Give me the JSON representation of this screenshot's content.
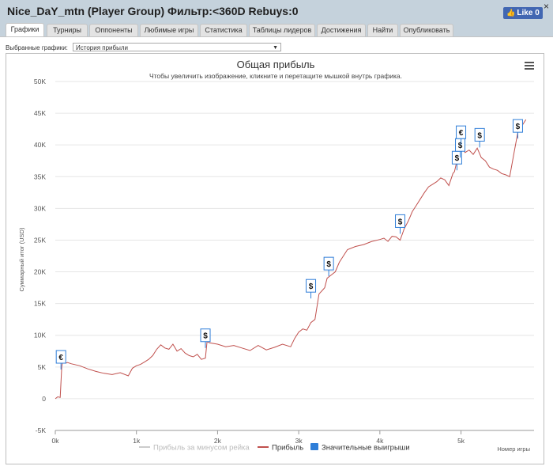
{
  "window": {
    "title": "Nice_DaY_mtn (Player Group) Фильтр:<360D Rebuys:0",
    "close_icon": "×",
    "like_label": "Like 0"
  },
  "tabs": [
    {
      "label": "Графики",
      "active": true
    },
    {
      "label": "Турниры",
      "active": false
    },
    {
      "label": "Оппоненты",
      "active": false
    },
    {
      "label": "Любимые игры",
      "active": false
    },
    {
      "label": "Статистика",
      "active": false
    },
    {
      "label": "Таблицы лидеров",
      "active": false
    },
    {
      "label": "Достижения",
      "active": false
    },
    {
      "label": "Найти",
      "active": false
    },
    {
      "label": "Опубликовать",
      "active": false
    }
  ],
  "graph_select": {
    "label": "Выбранные графики:",
    "value": "История прибыли"
  },
  "chart_data": {
    "type": "line",
    "title": "Общая прибыль",
    "subtitle": "Чтобы увеличить изображение, кликните и перетащите мышкой внутрь графика.",
    "xlabel": "Номер игры",
    "ylabel": "Суммарный итог (USD)",
    "x_ticks": [
      "0k",
      "1k",
      "2k",
      "3k",
      "4k",
      "5k"
    ],
    "y_ticks": [
      "50K",
      "45K",
      "40K",
      "35K",
      "30K",
      "25K",
      "20K",
      "15K",
      "10K",
      "5K",
      "0",
      "-5K"
    ],
    "xlim": [
      0,
      5900
    ],
    "ylim": [
      -5000,
      50000
    ],
    "grid": true,
    "legend": [
      {
        "label": "Прибыль за минусом рейка",
        "color": "#cccccc"
      },
      {
        "label": "Прибыль",
        "color": "#c0504d"
      },
      {
        "label": "Значительные выигрыши",
        "color": "#2f7ed8"
      }
    ],
    "series": [
      {
        "name": "Прибыль",
        "color": "#c0504d",
        "x": [
          0,
          30,
          60,
          80,
          90,
          130,
          150,
          200,
          300,
          400,
          500,
          600,
          700,
          800,
          900,
          950,
          1000,
          1050,
          1100,
          1150,
          1200,
          1250,
          1300,
          1350,
          1400,
          1450,
          1500,
          1550,
          1600,
          1650,
          1700,
          1750,
          1800,
          1850,
          1870,
          1900,
          2000,
          2100,
          2200,
          2300,
          2400,
          2500,
          2600,
          2700,
          2800,
          2900,
          2950,
          3000,
          3050,
          3100,
          3150,
          3200,
          3250,
          3300,
          3320,
          3350,
          3400,
          3450,
          3500,
          3600,
          3700,
          3800,
          3900,
          4000,
          4050,
          4100,
          4150,
          4200,
          4250,
          4300,
          4350,
          4400,
          4450,
          4500,
          4550,
          4600,
          4650,
          4700,
          4750,
          4800,
          4850,
          4900,
          4920,
          4950,
          4970,
          4980,
          5000,
          5050,
          5100,
          5150,
          5200,
          5250,
          5300,
          5350,
          5400,
          5450,
          5500,
          5550,
          5600,
          5650,
          5700,
          5750,
          5800
        ],
        "y": [
          0,
          300,
          200,
          5100,
          5800,
          5600,
          5700,
          5500,
          5200,
          4700,
          4300,
          4000,
          3800,
          4100,
          3600,
          4800,
          5200,
          5400,
          5800,
          6200,
          6800,
          7800,
          8500,
          8000,
          7800,
          8600,
          7500,
          7900,
          7200,
          6800,
          6600,
          7000,
          6200,
          6400,
          9000,
          8800,
          8600,
          8200,
          8400,
          8000,
          7600,
          8400,
          7700,
          8100,
          8600,
          8200,
          9500,
          10500,
          11000,
          10800,
          12000,
          12500,
          16500,
          17200,
          17500,
          19000,
          19500,
          20000,
          21500,
          23500,
          24000,
          24300,
          24800,
          25100,
          25300,
          24800,
          25600,
          25500,
          25000,
          26800,
          28000,
          29500,
          30500,
          31500,
          32500,
          33400,
          33800,
          34200,
          34800,
          34500,
          33600,
          35500,
          35800,
          37500,
          40200,
          39500,
          40000,
          38800,
          39200,
          38500,
          39500,
          38000,
          37500,
          36500,
          36200,
          36000,
          35500,
          35300,
          35000,
          38500,
          42000,
          43000,
          44000
        ]
      }
    ],
    "markers": [
      {
        "x": 70,
        "y": 5600,
        "label": "€"
      },
      {
        "x": 1850,
        "y": 9000,
        "label": "$"
      },
      {
        "x": 3150,
        "y": 16800,
        "label": "$"
      },
      {
        "x": 3370,
        "y": 20300,
        "label": "$"
      },
      {
        "x": 4250,
        "y": 27000,
        "label": "$"
      },
      {
        "x": 4950,
        "y": 37000,
        "label": "$"
      },
      {
        "x": 4990,
        "y": 39000,
        "label": "$"
      },
      {
        "x": 5000,
        "y": 41000,
        "label": "€"
      },
      {
        "x": 5230,
        "y": 40600,
        "label": "$"
      },
      {
        "x": 5700,
        "y": 42000,
        "label": "$"
      }
    ]
  },
  "chart_menu_icon": "hamburger-menu-icon"
}
